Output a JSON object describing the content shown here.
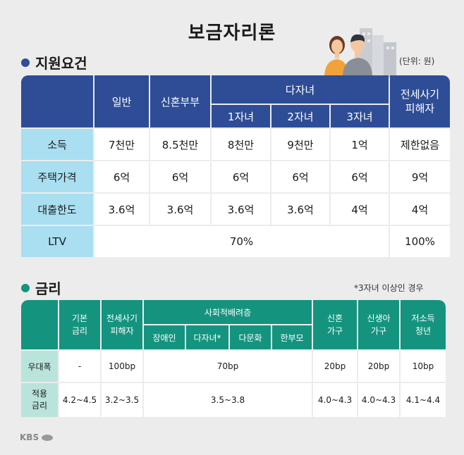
{
  "title": "보금자리론",
  "section1": {
    "label": "지원요건",
    "unit": "(단위: 원)",
    "dot_color": "#2e4d96"
  },
  "table1": {
    "col_headers": [
      "일반",
      "신혼부부",
      "다자녀",
      "전세사기\n피해자"
    ],
    "sub_headers": [
      "1자녀",
      "2자녀",
      "3자녀"
    ],
    "rows": [
      {
        "label": "소득",
        "values": [
          "7천만",
          "8.5천만",
          "8천만",
          "9천만",
          "1억",
          "제한없음"
        ]
      },
      {
        "label": "주택가격",
        "values": [
          "6억",
          "6억",
          "6억",
          "6억",
          "6억",
          "9억"
        ]
      },
      {
        "label": "대출한도",
        "values": [
          "3.6억",
          "3.6억",
          "3.6억",
          "3.6억",
          "4억",
          "4억"
        ]
      }
    ],
    "ltv": {
      "label": "LTV",
      "general": "70%",
      "fraud": "100%"
    }
  },
  "section2": {
    "label": "금리",
    "note": "*3자녀 이상인 경우",
    "dot_color": "#14947f"
  },
  "table2": {
    "headers": {
      "base": "기본\n금리",
      "fraud": "전세사기\n피해자",
      "social": "사회적배려층",
      "social_sub": [
        "장애인",
        "다자녀*",
        "다문화",
        "한부모"
      ],
      "newlywed": "신혼\n가구",
      "newborn": "신생아\n가구",
      "youth": "저소득\n청년"
    },
    "rows": [
      {
        "label": "우대폭",
        "values": [
          "-",
          "100bp",
          "70bp",
          "20bp",
          "20bp",
          "10bp"
        ]
      },
      {
        "label": "적용\n금리",
        "values": [
          "4.2~4.5",
          "3.2~3.5",
          "3.5~3.8",
          "4.0~4.3",
          "4.0~4.3",
          "4.1~4.4"
        ]
      }
    ]
  },
  "logo": "KBS"
}
